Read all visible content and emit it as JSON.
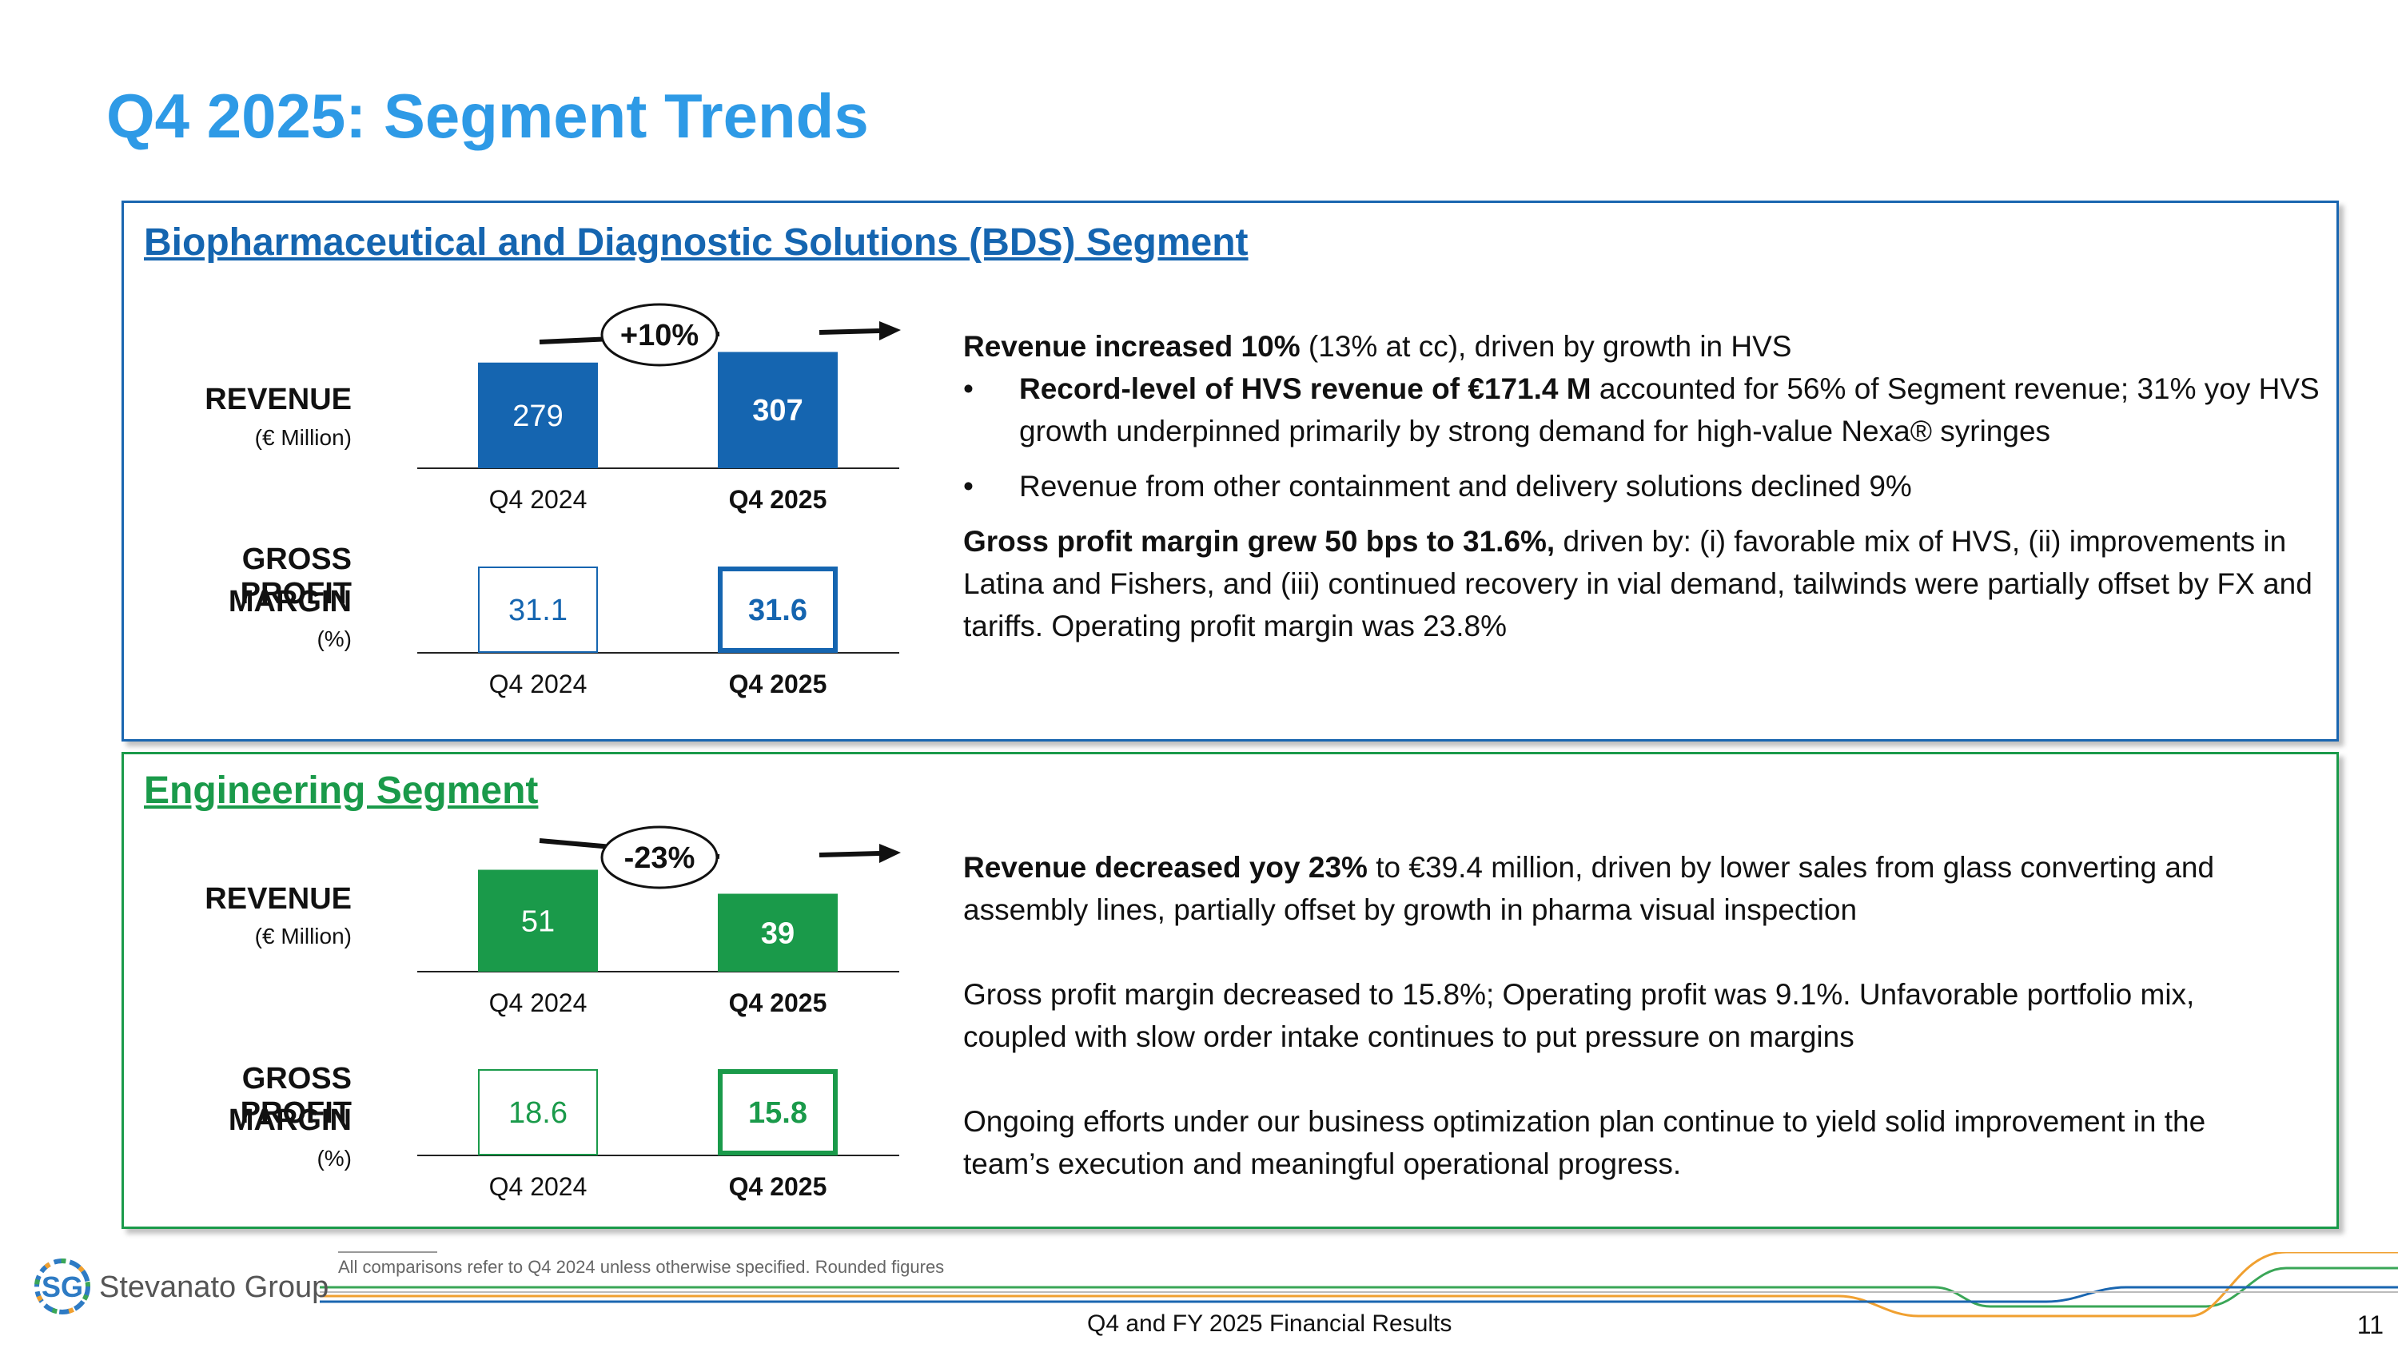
{
  "title": "Q4 2025: Segment Trends",
  "colors": {
    "title": "#2e9ae6",
    "bds": "#1565b0",
    "engineering": "#1a9a4a"
  },
  "bds": {
    "heading": "Biopharmaceutical and Diagnostic Solutions (BDS) Segment",
    "revenue_label": "REVENUE",
    "revenue_unit": "(€ Million)",
    "gpm_label_line1": "GROSS PROFIT",
    "gpm_label_line2": "MARGIN",
    "gpm_unit": "(%)",
    "change_badge": "+10%",
    "text": {
      "p1_bold": "Revenue increased 10%",
      "p1_rest": " (13% at cc), driven by growth in HVS",
      "b1_bold": "Record-level of HVS revenue of €171.4 M",
      "b1_rest": " accounted for 56% of Segment revenue; 31% yoy HVS growth underpinned primarily by strong demand for high-value Nexa® syringes",
      "b2": "Revenue from other containment and delivery solutions declined 9%",
      "p2_bold": "Gross profit margin grew 50 bps to 31.6%,",
      "p2_rest": " driven by: (i) favorable mix of HVS, (ii) improvements in Latina and Fishers, and (iii) continued recovery in vial demand, tailwinds were partially offset by FX and tariffs. Operating profit margin was 23.8%"
    }
  },
  "engineering": {
    "heading": "Engineering Segment",
    "revenue_label": "REVENUE",
    "revenue_unit": "(€ Million)",
    "gpm_label_line1": "GROSS PROFIT",
    "gpm_label_line2": "MARGIN",
    "gpm_unit": "(%)",
    "change_badge": "-23%",
    "text": {
      "p1_bold": "Revenue decreased yoy 23%",
      "p1_rest": " to €39.4 million, driven by lower sales from glass converting and assembly lines, partially offset by growth in pharma visual inspection",
      "p2": "Gross profit margin decreased to 15.8%; Operating profit was 9.1%. Unfavorable portfolio mix, coupled with slow order intake continues to put pressure on margins",
      "p3": "Ongoing efforts under our business optimization plan continue to yield solid improvement in the team’s execution and meaningful operational progress."
    }
  },
  "chart_data": [
    {
      "type": "bar",
      "title": "BDS Revenue",
      "categories": [
        "Q4 2024",
        "Q4 2025"
      ],
      "values": [
        279,
        307
      ],
      "ylabel": "(€ Million)"
    },
    {
      "type": "bar",
      "title": "BDS Gross Profit Margin",
      "categories": [
        "Q4 2024",
        "Q4 2025"
      ],
      "values": [
        31.1,
        31.6
      ],
      "ylabel": "(%)"
    },
    {
      "type": "bar",
      "title": "Engineering Revenue",
      "categories": [
        "Q4 2024",
        "Q4 2025"
      ],
      "values": [
        51,
        39
      ],
      "ylabel": "(€ Million)"
    },
    {
      "type": "bar",
      "title": "Engineering Gross Profit Margin",
      "categories": [
        "Q4 2024",
        "Q4 2025"
      ],
      "values": [
        18.6,
        15.8
      ],
      "ylabel": "(%)"
    }
  ],
  "footer": {
    "note": "All comparisons refer to Q4 2024 unless otherwise specified. Rounded figures",
    "center": "Q4 and FY 2025 Financial Results",
    "page": "11",
    "logo_mark": "SG",
    "logo_text": "Stevanato Group"
  }
}
